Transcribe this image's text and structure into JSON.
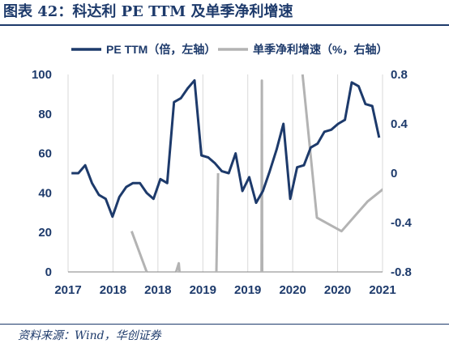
{
  "title": "图表 42：科达利 PE TTM 及单季净利增速",
  "source": "资料来源：Wind，华创证券",
  "colors": {
    "pe": "#1d3a6b",
    "growth": "#b3b3b3",
    "text": "#1d3a6b",
    "grid": "#d9d9d9"
  },
  "chart_data": {
    "type": "line",
    "x_tick_labels": [
      "2017",
      "2018",
      "2018",
      "2019",
      "2019",
      "2020",
      "2020",
      "2021"
    ],
    "yleft_ticks": [
      0,
      20,
      40,
      60,
      80,
      100
    ],
    "yleft_tick_labels": [
      "0",
      "20",
      "40",
      "60",
      "80",
      "100"
    ],
    "yright_ticks": [
      -0.8,
      -0.4,
      0,
      0.4,
      0.8
    ],
    "yright_tick_labels": [
      "-0.8",
      "-0.4",
      "0",
      "0.4",
      "0.8"
    ],
    "ylim_left": [
      0,
      100
    ],
    "ylim_right": [
      -0.8,
      0.8
    ],
    "legend_placement": "top",
    "grid": "vertical",
    "series": [
      {
        "name": "PE TTM（倍，左轴）",
        "axis": "left",
        "color": "#1d3a6b",
        "values": [
          50,
          50,
          54,
          45,
          39,
          37,
          28,
          38,
          43,
          45,
          45,
          40,
          37,
          47,
          45,
          86,
          88,
          93,
          97,
          59,
          58,
          55,
          51,
          50,
          60,
          41,
          48,
          35,
          41,
          51,
          62,
          75,
          37,
          53,
          54,
          63,
          65,
          71,
          72,
          75,
          77,
          96,
          94,
          85,
          84,
          68
        ]
      },
      {
        "name": "单季净利增速（%，右轴）",
        "axis": "right",
        "color": "#b3b3b3",
        "segments": [
          [
            [
              8.8,
              -0.47
            ],
            [
              11.0,
              -0.8
            ]
          ],
          [
            [
              15.3,
              -0.8
            ],
            [
              15.7,
              -0.73
            ],
            [
              15.8,
              -0.8
            ]
          ],
          [
            [
              21.2,
              -0.8
            ],
            [
              21.45,
              0.0
            ]
          ],
          [
            [
              27.8,
              -0.8
            ],
            [
              27.85,
              0.75
            ],
            [
              27.9,
              -0.8
            ]
          ],
          [
            [
              33.8,
              0.8
            ],
            [
              35.9,
              -0.36
            ],
            [
              39.5,
              -0.47
            ],
            [
              43.3,
              -0.23
            ],
            [
              46.9,
              -0.07
            ],
            [
              48.0,
              0.8
            ]
          ]
        ]
      }
    ]
  }
}
